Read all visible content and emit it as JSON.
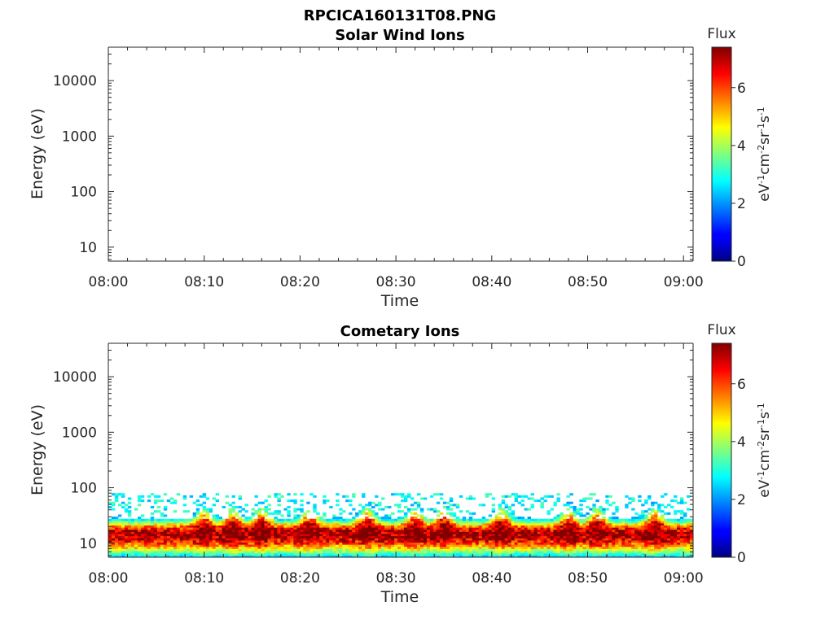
{
  "figure": {
    "title": "RPCICA160131T08.PNG"
  },
  "chart_data": [
    {
      "type": "heatmap",
      "title": "Solar Wind Ions",
      "xlabel": "Time",
      "ylabel": "Energy (eV)",
      "x_ticks": [
        "08:00",
        "08:10",
        "08:20",
        "08:30",
        "08:40",
        "08:50",
        "09:00"
      ],
      "xlim": [
        "08:00",
        "09:01"
      ],
      "y_ticks": [
        "10",
        "100",
        "1000",
        "10000"
      ],
      "y_tick_values": [
        10,
        100,
        1000,
        10000
      ],
      "ylim": [
        5.6,
        40000
      ],
      "y_scale": "log",
      "colorbar": {
        "label": "Flux",
        "unit": "eV-1cm-2sr-1s-1",
        "ticks": [
          "0",
          "2",
          "4",
          "6"
        ],
        "range": [
          0,
          7.4
        ],
        "colormap": "jet"
      },
      "data": "empty (no counts)"
    },
    {
      "type": "heatmap",
      "title": "Cometary Ions",
      "xlabel": "Time",
      "ylabel": "Energy (eV)",
      "x_ticks": [
        "08:00",
        "08:10",
        "08:20",
        "08:30",
        "08:40",
        "08:50",
        "09:00"
      ],
      "xlim": [
        "08:00",
        "09:01"
      ],
      "y_ticks": [
        "10",
        "100",
        "1000",
        "10000"
      ],
      "y_tick_values": [
        10,
        100,
        1000,
        10000
      ],
      "ylim": [
        5.6,
        40000
      ],
      "y_scale": "log",
      "colorbar": {
        "label": "Flux",
        "unit": "eV-1cm-2sr-1s-1",
        "ticks": [
          "0",
          "2",
          "4",
          "6"
        ],
        "range": [
          0,
          7.4
        ],
        "colormap": "jet"
      },
      "band": {
        "energy_range": [
          5.6,
          80
        ],
        "peak_energy": 15,
        "peak_flux": 7.2,
        "enhancements": [
          "08:10",
          "08:13",
          "08:16",
          "08:21",
          "08:27",
          "08:32",
          "08:35",
          "08:41",
          "08:48",
          "08:51",
          "08:57"
        ]
      }
    }
  ]
}
